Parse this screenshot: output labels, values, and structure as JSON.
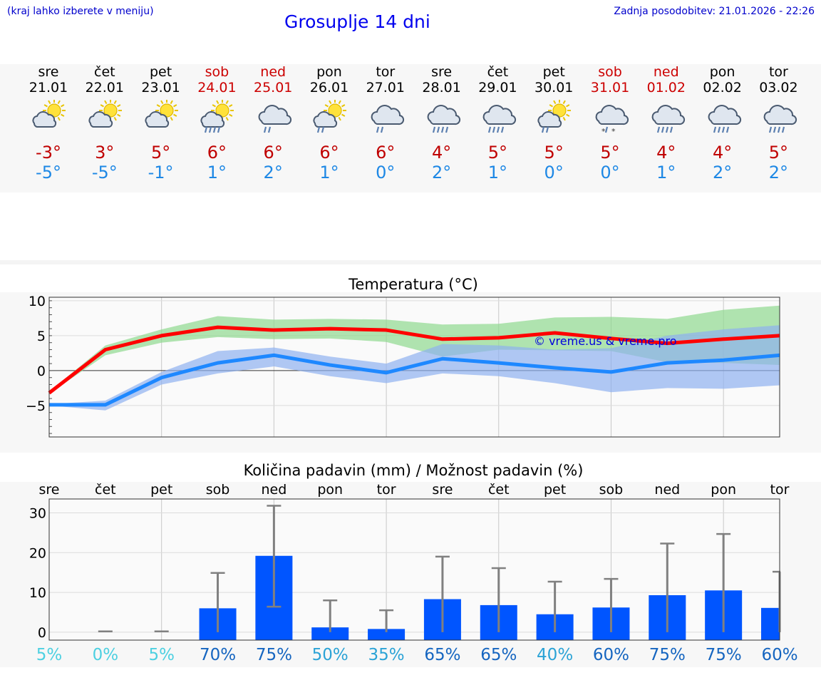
{
  "header": {
    "hint": "(kraj lahko izberete v meniju)",
    "title": "Grosuplje 14 dni",
    "updated": "Zadnja posodobitev: 21.01.2026 - 22:26"
  },
  "days": [
    {
      "name": "sre",
      "date": "21.01",
      "weekend": false,
      "icon": "sun-cloud-icon",
      "tmax": "-3°",
      "tmin": "-5°"
    },
    {
      "name": "čet",
      "date": "22.01",
      "weekend": false,
      "icon": "sun-cloud-icon",
      "tmax": "3°",
      "tmin": "-5°"
    },
    {
      "name": "pet",
      "date": "23.01",
      "weekend": false,
      "icon": "sun-cloud-icon",
      "tmax": "5°",
      "tmin": "-1°"
    },
    {
      "name": "sob",
      "date": "24.01",
      "weekend": true,
      "icon": "sun-rain-icon",
      "tmax": "6°",
      "tmin": "1°"
    },
    {
      "name": "ned",
      "date": "25.01",
      "weekend": true,
      "icon": "cloud-light-rain-icon",
      "tmax": "6°",
      "tmin": "2°"
    },
    {
      "name": "pon",
      "date": "26.01",
      "weekend": false,
      "icon": "sun-rain-light-icon",
      "tmax": "6°",
      "tmin": "1°"
    },
    {
      "name": "tor",
      "date": "27.01",
      "weekend": false,
      "icon": "cloud-light-rain-icon",
      "tmax": "6°",
      "tmin": "0°"
    },
    {
      "name": "sre",
      "date": "28.01",
      "weekend": false,
      "icon": "cloud-rain-icon",
      "tmax": "4°",
      "tmin": "2°"
    },
    {
      "name": "čet",
      "date": "29.01",
      "weekend": false,
      "icon": "cloud-rain-icon",
      "tmax": "5°",
      "tmin": "1°"
    },
    {
      "name": "pet",
      "date": "30.01",
      "weekend": false,
      "icon": "sun-rain-light-icon",
      "tmax": "5°",
      "tmin": "0°"
    },
    {
      "name": "sob",
      "date": "31.01",
      "weekend": true,
      "icon": "cloud-sleet-icon",
      "tmax": "5°",
      "tmin": "0°"
    },
    {
      "name": "ned",
      "date": "01.02",
      "weekend": true,
      "icon": "cloud-rain-icon",
      "tmax": "4°",
      "tmin": "1°"
    },
    {
      "name": "pon",
      "date": "02.02",
      "weekend": false,
      "icon": "cloud-rain-icon",
      "tmax": "4°",
      "tmin": "2°"
    },
    {
      "name": "tor",
      "date": "03.02",
      "weekend": false,
      "icon": "cloud-rain-icon",
      "tmax": "5°",
      "tmin": "2°"
    }
  ],
  "colors": {
    "max_line": "#ff0000",
    "min_line": "#1e88ff",
    "max_band": "#8fd98f",
    "min_band": "#8fb0f0",
    "bar": "#0055ff",
    "whisker": "#808080",
    "prob_low": "#4dd0e1",
    "prob_mid": "#2ba3d6",
    "prob_high": "#1565c0"
  },
  "chart_data": [
    {
      "type": "line",
      "title": "Temperatura (°C)",
      "watermark": "© vreme.us & vreme.pro",
      "ylim": [
        -9.5,
        10.5
      ],
      "yticks": [
        "10",
        "5",
        "0",
        "−5"
      ],
      "ytick_values": [
        10,
        5,
        0,
        -5
      ],
      "series": [
        {
          "name": "max",
          "values": [
            -3.2,
            3.0,
            5.0,
            6.2,
            5.8,
            6.0,
            5.8,
            4.5,
            4.7,
            5.4,
            4.6,
            3.9,
            4.5,
            5.0
          ]
        },
        {
          "name": "min",
          "values": [
            -4.9,
            -4.9,
            -1.0,
            1.1,
            2.2,
            0.8,
            -0.3,
            1.7,
            1.1,
            0.4,
            -0.2,
            1.1,
            1.5,
            2.2
          ]
        }
      ],
      "bands": [
        {
          "name": "max_range",
          "low": [
            -3.3,
            2.2,
            4.0,
            4.8,
            4.5,
            4.6,
            4.1,
            2.0,
            3.0,
            2.9,
            2.8,
            1.2,
            1.1,
            0.8
          ],
          "high": [
            -3.0,
            3.6,
            5.9,
            7.8,
            7.3,
            7.4,
            7.3,
            6.6,
            6.7,
            7.6,
            7.7,
            7.4,
            8.7,
            9.3
          ]
        },
        {
          "name": "min_range",
          "low": [
            -5.0,
            -5.7,
            -2.0,
            -0.4,
            0.6,
            -0.8,
            -1.8,
            -0.4,
            -0.8,
            -1.8,
            -3.1,
            -2.5,
            -2.6,
            -2.1
          ],
          "high": [
            -4.8,
            -4.3,
            -0.2,
            2.8,
            3.3,
            2.0,
            1.0,
            3.8,
            3.6,
            3.0,
            3.2,
            5.0,
            5.9,
            6.5
          ]
        }
      ]
    },
    {
      "type": "bar",
      "title": "Količina padavin (mm) / Možnost padavin (%)",
      "categories": [
        "sre",
        "čet",
        "pet",
        "sob",
        "ned",
        "pon",
        "tor",
        "sre",
        "čet",
        "pet",
        "sob",
        "ned",
        "pon",
        "tor"
      ],
      "ylim": [
        -2,
        33.5
      ],
      "yticks": [
        "30",
        "20",
        "10",
        "0"
      ],
      "ytick_values": [
        30,
        20,
        10,
        0
      ],
      "values": [
        0,
        0,
        0,
        6.0,
        19.2,
        1.2,
        0.8,
        8.3,
        6.8,
        4.5,
        6.2,
        9.3,
        10.5,
        6.1
      ],
      "error_high": [
        0,
        0.2,
        0.2,
        14.9,
        31.8,
        8.0,
        5.5,
        19.0,
        16.1,
        12.7,
        13.4,
        22.3,
        24.7,
        15.2
      ],
      "error_low": [
        0,
        0,
        0,
        0,
        6.4,
        0,
        0,
        0,
        0,
        0,
        0,
        0,
        0,
        0
      ],
      "probability": [
        "5%",
        "0%",
        "5%",
        "70%",
        "75%",
        "50%",
        "35%",
        "65%",
        "65%",
        "40%",
        "60%",
        "75%",
        "75%",
        "60%"
      ],
      "probability_values": [
        5,
        0,
        5,
        70,
        75,
        50,
        35,
        65,
        65,
        40,
        60,
        75,
        75,
        60
      ]
    }
  ]
}
